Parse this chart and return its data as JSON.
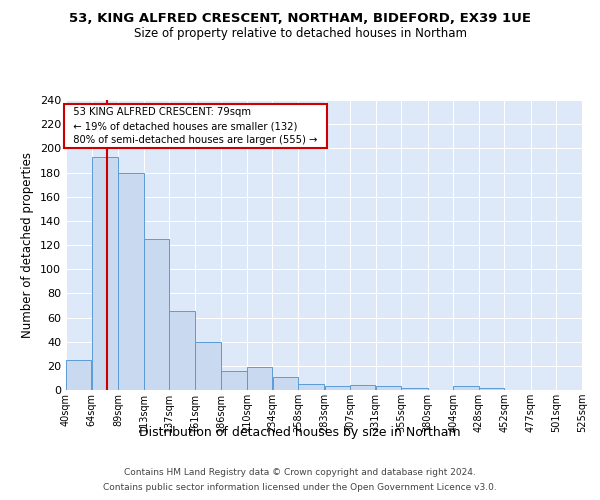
{
  "title1": "53, KING ALFRED CRESCENT, NORTHAM, BIDEFORD, EX39 1UE",
  "title2": "Size of property relative to detached houses in Northam",
  "xlabel": "Distribution of detached houses by size in Northam",
  "ylabel": "Number of detached properties",
  "bar_left_edges": [
    40,
    64,
    89,
    113,
    137,
    161,
    186,
    210,
    234,
    258,
    283,
    307,
    331,
    355,
    380,
    404,
    428,
    452,
    477,
    501
  ],
  "bar_widths": [
    24,
    25,
    24,
    24,
    24,
    25,
    24,
    24,
    24,
    25,
    24,
    24,
    24,
    25,
    24,
    24,
    24,
    25,
    24,
    24
  ],
  "bar_heights": [
    25,
    193,
    180,
    125,
    65,
    40,
    16,
    19,
    11,
    5,
    3,
    4,
    3,
    2,
    0,
    3,
    2,
    0,
    0,
    0
  ],
  "tick_labels": [
    "40sqm",
    "64sqm",
    "89sqm",
    "113sqm",
    "137sqm",
    "161sqm",
    "186sqm",
    "210sqm",
    "234sqm",
    "258sqm",
    "283sqm",
    "307sqm",
    "331sqm",
    "355sqm",
    "380sqm",
    "404sqm",
    "428sqm",
    "452sqm",
    "477sqm",
    "501sqm",
    "525sqm"
  ],
  "bar_color": "#c9d9f0",
  "bar_edge_color": "#5b9bd5",
  "red_line_x": 79,
  "annotation_text": "  53 KING ALFRED CRESCENT: 79sqm  \n  ← 19% of detached houses are smaller (132)  \n  80% of semi-detached houses are larger (555) →  ",
  "annotation_box_color": "#ffffff",
  "annotation_box_edge": "#cc0000",
  "ylim": [
    0,
    240
  ],
  "yticks": [
    0,
    20,
    40,
    60,
    80,
    100,
    120,
    140,
    160,
    180,
    200,
    220,
    240
  ],
  "bg_color": "#dde8f8",
  "footer1": "Contains HM Land Registry data © Crown copyright and database right 2024.",
  "footer2": "Contains public sector information licensed under the Open Government Licence v3.0."
}
